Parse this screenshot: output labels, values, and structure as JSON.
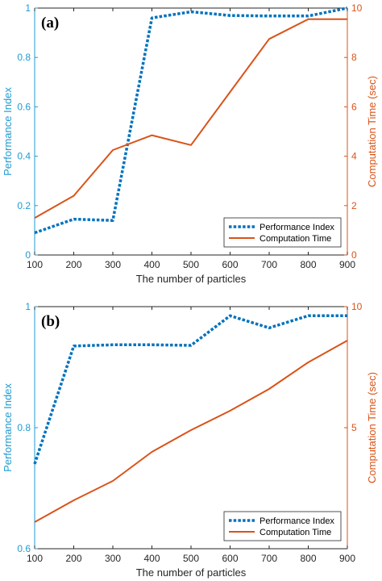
{
  "chart_data": [
    {
      "type": "line",
      "panel_label": "(a)",
      "x": [
        100,
        200,
        300,
        400,
        500,
        600,
        700,
        800,
        900
      ],
      "xlabel": "The number of particles",
      "xlim": [
        100,
        900
      ],
      "xticks": [
        100,
        200,
        300,
        400,
        500,
        600,
        700,
        800,
        900
      ],
      "ylabel_left": "Performance Index",
      "ylim_left": [
        0,
        1
      ],
      "yticks_left": [
        0,
        0.2,
        0.4,
        0.6,
        0.8,
        1
      ],
      "ylabel_right": "Computation Time (sec)",
      "ylim_right": [
        0,
        10
      ],
      "yticks_right": [
        0,
        2,
        4,
        6,
        8,
        10
      ],
      "grid": false,
      "legend_position": "bottom-right",
      "series": [
        {
          "name": "Performance Index",
          "axis": "left",
          "style": "dotted",
          "color": "#0072BD",
          "values": [
            0.09,
            0.145,
            0.14,
            0.96,
            0.985,
            0.97,
            0.968,
            0.968,
            1.0
          ]
        },
        {
          "name": "Computation Time",
          "axis": "right",
          "style": "solid",
          "color": "#D95319",
          "values": [
            1.5,
            2.4,
            4.25,
            4.85,
            4.45,
            6.6,
            8.75,
            9.55,
            9.55
          ]
        }
      ]
    },
    {
      "type": "line",
      "panel_label": "(b)",
      "x": [
        100,
        200,
        300,
        400,
        500,
        600,
        700,
        800,
        900
      ],
      "xlabel": "The number of particles",
      "xlim": [
        100,
        900
      ],
      "xticks": [
        100,
        200,
        300,
        400,
        500,
        600,
        700,
        800,
        900
      ],
      "ylabel_left": "Performance Index",
      "ylim_left": [
        0.6,
        1
      ],
      "yticks_left": [
        0.6,
        0.8,
        1
      ],
      "ylabel_right": "Computation Time (sec)",
      "ylim_right": [
        0,
        10
      ],
      "yticks_right": [
        5,
        10
      ],
      "grid": false,
      "legend_position": "bottom-right",
      "series": [
        {
          "name": "Performance Index",
          "axis": "left",
          "style": "dotted",
          "color": "#0072BD",
          "values": [
            0.74,
            0.935,
            0.937,
            0.937,
            0.936,
            0.985,
            0.965,
            0.985,
            0.985
          ]
        },
        {
          "name": "Computation Time",
          "axis": "right",
          "style": "solid",
          "color": "#D95319",
          "values": [
            1.1,
            2.0,
            2.8,
            4.0,
            4.9,
            5.7,
            6.6,
            7.7,
            8.6
          ]
        }
      ]
    }
  ]
}
